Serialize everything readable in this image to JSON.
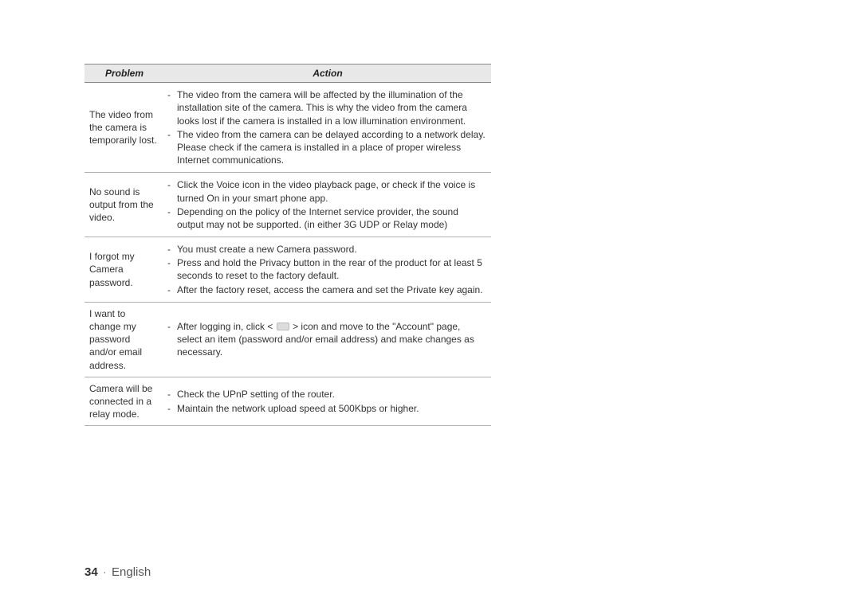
{
  "colors": {
    "header_bg": "#e8e8e8",
    "header_border": "#888888",
    "row_border": "#b0b0b0",
    "text": "#333333",
    "footer_text": "#555555",
    "icon_bg": "#dcdcdc",
    "icon_border": "#bbbbbb",
    "page_bg": "#ffffff"
  },
  "table": {
    "headers": {
      "problem": "Problem",
      "action": "Action"
    },
    "rows": [
      {
        "problem": "The video from the camera is temporarily lost.",
        "actions": [
          "The video from the camera will be affected by the illumination of the installation site of the camera. This is why the video from the camera looks lost if the camera is installed in a low illumination environment.",
          "The video from the camera can be delayed according to a network delay. Please check if the camera is installed in a place of proper wireless Internet communications."
        ]
      },
      {
        "problem": "No sound is output from the video.",
        "actions": [
          "Click the Voice icon in the video playback page, or check if the voice is turned On in your smart phone app.",
          "Depending on the policy of the Internet service provider, the sound output may not be supported. (in either 3G UDP or Relay mode)"
        ]
      },
      {
        "problem": "I forgot my Camera password.",
        "actions": [
          "You must create a new Camera password.",
          "Press and hold the Privacy button in the rear of the product for at least 5 seconds to reset to the factory default.",
          "After the factory reset, access the camera and set the Private key again."
        ]
      },
      {
        "problem": "I want to change my password and/or email address.",
        "icon_action": {
          "pre": "After logging in, click < ",
          "post": " > icon and move to the \"Account\" page, select an item (password and/or email address) and make changes as necessary.",
          "icon": "settings-card-icon"
        }
      },
      {
        "problem": "Camera will be connected in a relay mode.",
        "actions": [
          "Check the UPnP setting of the router.",
          "Maintain the network upload speed at 500Kbps or higher."
        ]
      }
    ]
  },
  "footer": {
    "page_number": "34",
    "separator": "·",
    "language": "English"
  }
}
